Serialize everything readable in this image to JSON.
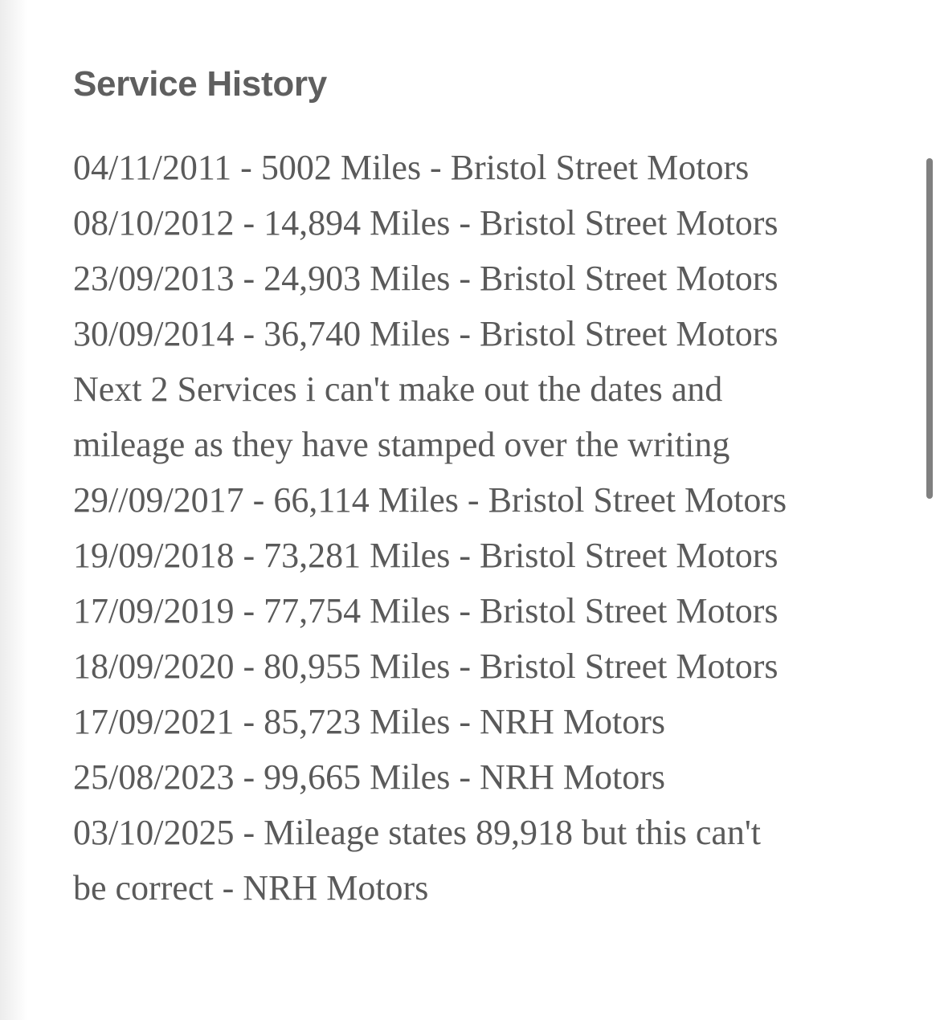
{
  "section": {
    "title": "Service History",
    "lines": [
      "04/11/2011 - 5002 Miles - Bristol Street Motors",
      "08/10/2012 - 14,894 Miles - Bristol Street Motors",
      "23/09/2013 - 24,903 Miles - Bristol Street Motors",
      "30/09/2014 - 36,740 Miles - Bristol Street Motors",
      "Next 2 Services i can't make out the dates and",
      "mileage as they have stamped over the writing",
      "29//09/2017 - 66,114 Miles - Bristol Street Motors",
      "19/09/2018 - 73,281 Miles - Bristol Street Motors",
      "17/09/2019 - 77,754 Miles - Bristol Street Motors",
      "18/09/2020 - 80,955 Miles - Bristol Street Motors",
      "17/09/2021 - 85,723 Miles - NRH Motors",
      "25/08/2023 - 99,665 Miles - NRH Motors",
      "03/10/2025 - Mileage states 89,918 but this can't",
      "be correct - NRH Motors"
    ]
  }
}
